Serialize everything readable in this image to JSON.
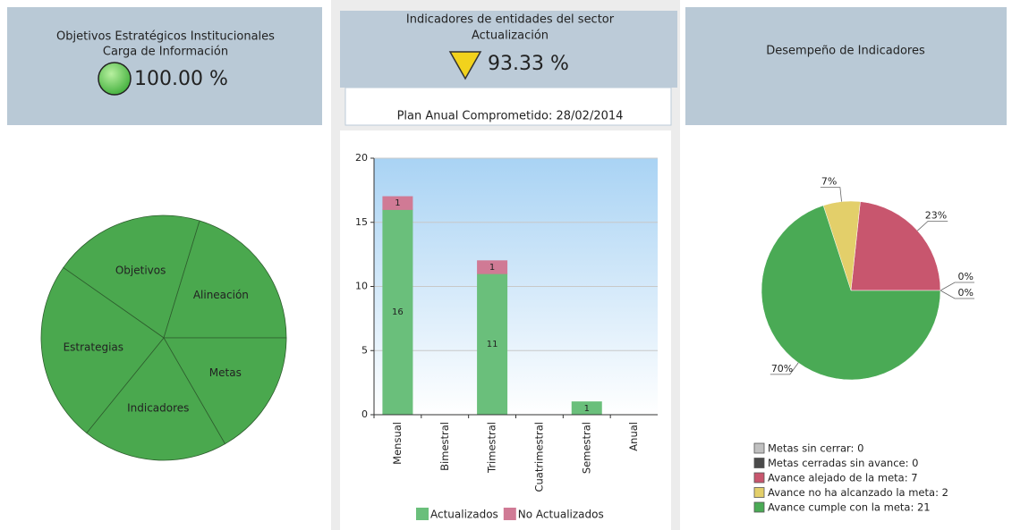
{
  "panels": [
    {
      "title": "Objetivos Estratégicos Institucionales",
      "subtitle": "Carga de Información",
      "value": "100.00 %"
    },
    {
      "title": "Indicadores de entidades del sector",
      "subtitle": "Actualización",
      "value": "93.33 %",
      "note": "Plan Anual Comprometido: 28/02/2014"
    },
    {
      "title": "Desempeño de Indicadores"
    }
  ],
  "chart_data": [
    {
      "type": "pie",
      "categories": [
        "Objetivos",
        "Alineación",
        "Metas",
        "Indicadores",
        "Estrategias"
      ],
      "values": [
        72,
        73,
        60,
        69,
        86
      ],
      "color": "#4aa84e"
    },
    {
      "type": "bar",
      "stacked": true,
      "categories": [
        "Mensual",
        "Bimestral",
        "Trimestral",
        "Cuatrimestral",
        "Semestral",
        "Anual"
      ],
      "series": [
        {
          "name": "Actualizados",
          "color": "#6abf7b",
          "values": [
            16,
            0,
            11,
            0,
            1,
            0
          ]
        },
        {
          "name": "No Actualizados",
          "color": "#d07a95",
          "values": [
            1,
            0,
            1,
            0,
            0,
            0
          ]
        }
      ],
      "ylim": [
        0,
        20
      ],
      "yticks": [
        0,
        5,
        10,
        15,
        20
      ],
      "grid": true,
      "legend": "bottom"
    },
    {
      "type": "pie",
      "categories": [
        "Metas sin cerrar: 0",
        "Metas cerradas sin avance: 0",
        "Avance alejado de la meta: 7",
        "Avance no ha alcanzado la meta: 2",
        "Avance cumple con la meta: 21"
      ],
      "values": [
        0,
        0,
        7,
        2,
        21
      ],
      "value_labels": [
        "0%",
        "0%",
        "23%",
        "7%",
        "70%"
      ],
      "colors": [
        "#c0c0c0",
        "#4a4a4a",
        "#c8566e",
        "#e3cf6a",
        "#4aaa55"
      ],
      "legend": "bottom-left"
    }
  ]
}
